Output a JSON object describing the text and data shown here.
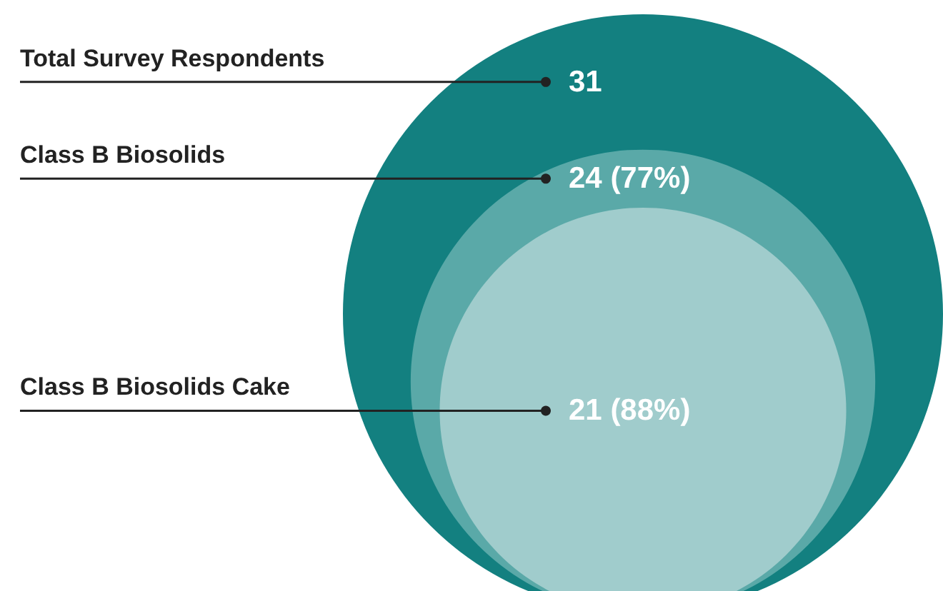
{
  "chart_data": {
    "type": "other",
    "categories": [
      "Total Survey Respondents",
      "Class B Biosolids",
      "Class B Biosolids Cake"
    ],
    "values": [
      31,
      24,
      21
    ],
    "value_labels": [
      "31",
      "24 (77%)",
      "21 (88%)"
    ],
    "colors": [
      "#138080",
      "#5aa9a8",
      "#a0cccc"
    ]
  }
}
